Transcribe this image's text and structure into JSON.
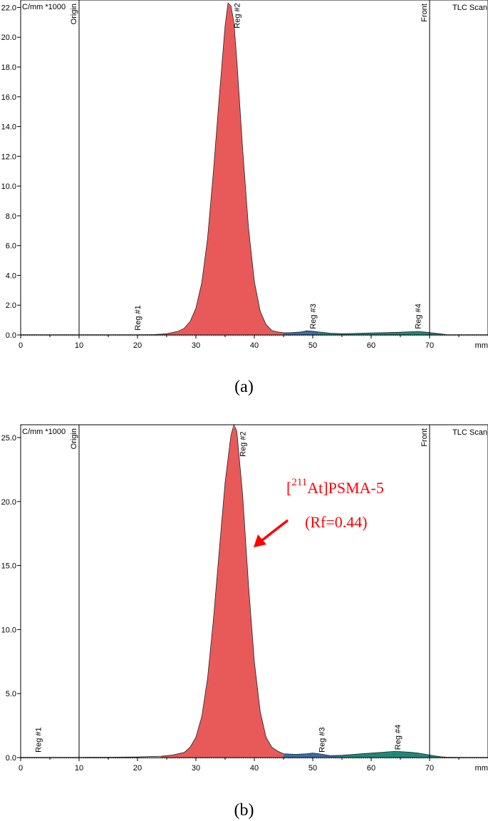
{
  "colors": {
    "reg1": "#e85a5a",
    "reg2": "#e85a5a",
    "reg3": "#3a6ea8",
    "reg4": "#1f8a7a",
    "annotation": "#ff0000",
    "axis": "#000000"
  },
  "chart_data": [
    {
      "type": "area",
      "caption": "(a)",
      "unit_label": "C/mm *1000",
      "corner_label": "TLC Scan",
      "xlabel": "mm",
      "xlim": [
        0,
        80
      ],
      "ylim": [
        0,
        22.5
      ],
      "x_ticks": [
        0,
        10,
        20,
        30,
        40,
        50,
        60,
        70
      ],
      "y_ticks": [
        0.0,
        2.0,
        4.0,
        6.0,
        8.0,
        10.0,
        12.0,
        14.0,
        16.0,
        18.0,
        20.0,
        22.0
      ],
      "y_tick_labels": [
        "0.0",
        "2.0",
        "4.0",
        "6.0",
        "8.0",
        "10.0",
        "12.0",
        "14.0",
        "16.0",
        "18.0",
        "20.0",
        "22.0"
      ],
      "markers": [
        {
          "label": "Origin",
          "x": 10
        },
        {
          "label": "Front",
          "x": 70
        }
      ],
      "regions": [
        {
          "label": "Reg #1",
          "label_x": 20,
          "label_y": 0.3,
          "from": 24,
          "to": 24,
          "color_key": "reg1"
        },
        {
          "label": "Reg #2",
          "label_x": 37,
          "label_y": 20.6,
          "from": 24,
          "to": 45,
          "color_key": "reg2"
        },
        {
          "label": "Reg #3",
          "label_x": 50,
          "label_y": 0.4,
          "from": 45,
          "to": 51,
          "color_key": "reg3"
        },
        {
          "label": "Reg #4",
          "label_x": 68,
          "label_y": 0.4,
          "from": 51,
          "to": 73,
          "color_key": "reg4"
        }
      ],
      "series": [
        {
          "x": [
            0,
            5,
            10,
            15,
            20,
            23,
            25,
            27,
            28,
            29,
            30,
            31,
            32,
            33,
            34,
            35,
            35.5,
            36,
            36.5,
            37,
            38,
            39,
            40,
            41,
            42,
            43,
            44,
            45,
            46,
            48,
            49,
            50,
            51,
            53,
            55,
            57,
            60,
            63,
            65,
            67,
            68,
            69,
            70,
            71,
            72,
            73,
            75,
            77,
            80
          ],
          "y": [
            0.02,
            0.02,
            0.02,
            0.02,
            0.02,
            0.03,
            0.08,
            0.25,
            0.45,
            0.9,
            1.8,
            3.5,
            6.5,
            11.0,
            16.0,
            20.8,
            22.3,
            22.1,
            21.0,
            18.5,
            12.5,
            7.2,
            3.6,
            1.6,
            0.7,
            0.3,
            0.2,
            0.15,
            0.15,
            0.2,
            0.28,
            0.25,
            0.2,
            0.12,
            0.08,
            0.1,
            0.14,
            0.16,
            0.18,
            0.22,
            0.24,
            0.2,
            0.16,
            0.12,
            0.06,
            0.02,
            0.02,
            0.02,
            0.02
          ]
        }
      ]
    },
    {
      "type": "area",
      "caption": "(b)",
      "unit_label": "C/mm *1000",
      "corner_label": "TLC Scan",
      "xlabel": "mm",
      "xlim": [
        0,
        80
      ],
      "ylim": [
        0,
        26
      ],
      "x_ticks": [
        0,
        10,
        20,
        30,
        40,
        50,
        60,
        70
      ],
      "y_ticks": [
        0.0,
        5.0,
        10.0,
        15.0,
        20.0,
        25.0
      ],
      "y_tick_labels": [
        "0.0",
        "5.0",
        "10.0",
        "15.0",
        "20.0",
        "25.0"
      ],
      "markers": [
        {
          "label": "Origin",
          "x": 10
        },
        {
          "label": "Front",
          "x": 70
        }
      ],
      "regions": [
        {
          "label": "Reg #1",
          "label_x": 3,
          "label_y": 0.4,
          "from": 24,
          "to": 24,
          "color_key": "reg1"
        },
        {
          "label": "Reg #2",
          "label_x": 38,
          "label_y": 23.5,
          "from": 24,
          "to": 45,
          "color_key": "reg2"
        },
        {
          "label": "Reg #3",
          "label_x": 51.5,
          "label_y": 0.4,
          "from": 45,
          "to": 55,
          "color_key": "reg3"
        },
        {
          "label": "Reg #4",
          "label_x": 64.5,
          "label_y": 0.6,
          "from": 55,
          "to": 72,
          "color_key": "reg4"
        }
      ],
      "annotation": {
        "line1_bracket": "[",
        "line1_sup": "211",
        "line1_rest": "At]PSMA-5",
        "line2": "(Rf=0.44)"
      },
      "series": [
        {
          "x": [
            0,
            5,
            10,
            15,
            20,
            24,
            26,
            28,
            29,
            30,
            31,
            32,
            33,
            34,
            35,
            36,
            36.5,
            37,
            38,
            39,
            40,
            41,
            42,
            43,
            44,
            45,
            47,
            49,
            50,
            51,
            53,
            55,
            57,
            59,
            61,
            62,
            63,
            64,
            65,
            66,
            67,
            68,
            69,
            70,
            71,
            72,
            73,
            75,
            77,
            80
          ],
          "y": [
            0.02,
            0.02,
            0.02,
            0.03,
            0.05,
            0.1,
            0.2,
            0.4,
            0.8,
            1.6,
            3.2,
            6.2,
            10.8,
            16.2,
            21.5,
            25.2,
            26.0,
            25.5,
            20.5,
            13.5,
            7.5,
            3.6,
            1.6,
            0.8,
            0.5,
            0.3,
            0.25,
            0.3,
            0.35,
            0.3,
            0.15,
            0.18,
            0.25,
            0.32,
            0.38,
            0.42,
            0.45,
            0.48,
            0.46,
            0.44,
            0.4,
            0.35,
            0.28,
            0.2,
            0.12,
            0.06,
            0.03,
            0.02,
            0.02,
            0.02
          ]
        }
      ]
    }
  ]
}
